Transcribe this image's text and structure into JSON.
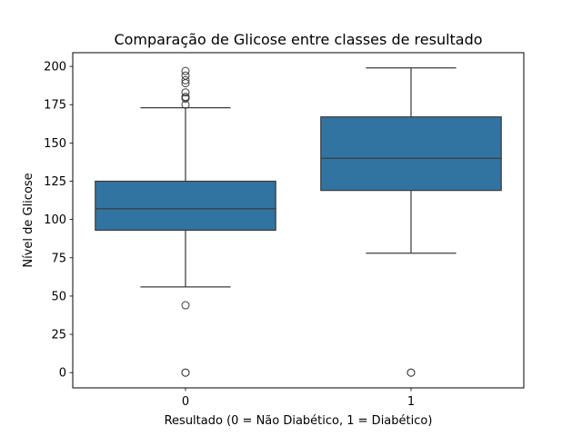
{
  "chart_data": {
    "type": "box",
    "title": "Comparação de Glicose entre classes de resultado",
    "xlabel": "Resultado (0 = Não Diabético, 1 = Diabético)",
    "ylabel": "Nível de Glicose",
    "categories": [
      "0",
      "1"
    ],
    "ylim": [
      -9.95,
      208.95
    ],
    "yticks": [
      0,
      25,
      50,
      75,
      100,
      125,
      150,
      175,
      200
    ],
    "ytick_labels": [
      "0",
      "25",
      "50",
      "75",
      "100",
      "125",
      "150",
      "175",
      "200"
    ],
    "grid": false,
    "box_color": "#3274a1",
    "line_color": "#3d3d3d",
    "boxes": [
      {
        "category": "0",
        "whisker_low": 56,
        "q1": 93,
        "median": 107,
        "q3": 125,
        "whisker_high": 173,
        "outliers": [
          0,
          0,
          44,
          175,
          179,
          180,
          180,
          183,
          189,
          191,
          194,
          197
        ]
      },
      {
        "category": "1",
        "whisker_low": 78,
        "q1": 119,
        "median": 140,
        "q3": 167,
        "whisker_high": 199,
        "outliers": [
          0,
          0
        ]
      }
    ]
  }
}
